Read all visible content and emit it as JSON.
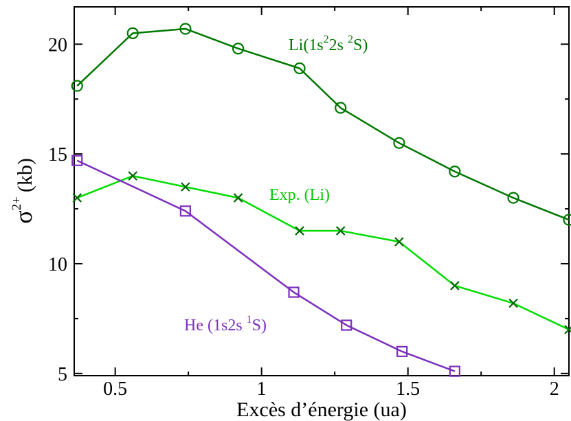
{
  "chart_data": {
    "type": "line",
    "xlabel": "Excès d’énergie (ua)",
    "ylabel": {
      "symbol": "σ",
      "sup": "2+",
      "unit": "(kb)"
    },
    "xlim": [
      0.36,
      2.05
    ],
    "ylim": [
      4.9,
      21.7
    ],
    "xticks": [
      0.5,
      1,
      1.5,
      2
    ],
    "xtick_labels": [
      "0.5",
      "1",
      "1.5",
      "2"
    ],
    "yticks": [
      5,
      10,
      15,
      20
    ],
    "ytick_labels": [
      "5",
      "10",
      "15",
      "20"
    ],
    "grid": false,
    "series": [
      {
        "name": "Li(1s²2s ²S)",
        "label_parts": {
          "a": "Li(1s",
          "b": "2",
          "c": "2s ",
          "d": "2",
          "e": "S)"
        },
        "color": "#007800",
        "marker": "circle",
        "x": [
          0.37,
          0.56,
          0.74,
          0.92,
          1.13,
          1.27,
          1.47,
          1.66,
          1.86,
          2.05
        ],
        "y": [
          18.1,
          20.5,
          20.7,
          19.8,
          18.9,
          17.1,
          15.5,
          14.2,
          13.0,
          12.0
        ]
      },
      {
        "name": "Exp. (Li)",
        "color": "#00dd00",
        "marker": "x",
        "x": [
          0.37,
          0.56,
          0.74,
          0.92,
          1.13,
          1.27,
          1.47,
          1.66,
          1.86,
          2.05
        ],
        "y": [
          13.0,
          14.0,
          13.5,
          13.0,
          11.5,
          11.5,
          11.0,
          9.0,
          8.2,
          7.0
        ]
      },
      {
        "name": "He (1s2s ¹S)",
        "label_parts": {
          "a": "He (1s2s ",
          "b": "1",
          "c": "S)"
        },
        "color": "#7b2fbe",
        "marker": "square",
        "x": [
          0.37,
          0.74,
          1.11,
          1.29,
          1.48,
          1.66
        ],
        "y": [
          14.7,
          12.4,
          8.7,
          7.2,
          6.0,
          5.1
        ]
      }
    ]
  }
}
